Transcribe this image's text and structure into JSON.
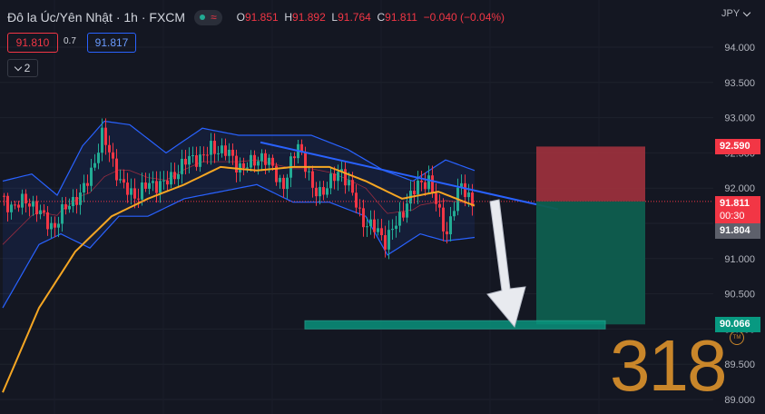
{
  "header": {
    "symbol": "Đô la Úc/Yên Nhật · 1h · FXCM",
    "ohlc": {
      "o_label": "O",
      "o": "91.851",
      "h_label": "H",
      "h": "91.892",
      "l_label": "L",
      "l": "91.764",
      "c_label": "C",
      "c": "91.811",
      "change": "−0.040 (−0.04%)"
    },
    "currency": "JPY"
  },
  "trade_panel": {
    "sell_price": "91.810",
    "spread": "0.7",
    "buy_price": "91.817"
  },
  "indicators": {
    "count": "2"
  },
  "watermark": "318",
  "colors": {
    "background": "#141722",
    "bull": "#22ab94",
    "bear": "#f23645",
    "trendline": "#2962ff",
    "ma": "#f5a623",
    "band": "#2962ff",
    "target": "#089981",
    "stop": "#a8323e"
  },
  "chart_data": {
    "type": "candlestick",
    "currency": "JPY",
    "y_axis": {
      "min": 89.0,
      "max": 94.2,
      "ticks": [
        94.0,
        93.5,
        93.0,
        92.5,
        92.0,
        91.5,
        91.0,
        90.5,
        90.0,
        89.5,
        89.0
      ],
      "tick_labels": [
        "94.000",
        "93.500",
        "93.000",
        "92.500",
        "92.000",
        "91.500",
        "91.000",
        "90.500",
        "90.000",
        "89.500",
        "89.000"
      ]
    },
    "bars": 130,
    "price_path": [
      {
        "bar": 0,
        "price": 91.85
      },
      {
        "bar": 8,
        "price": 91.75
      },
      {
        "bar": 15,
        "price": 91.5
      },
      {
        "bar": 22,
        "price": 91.9
      },
      {
        "bar": 28,
        "price": 92.7
      },
      {
        "bar": 33,
        "price": 92.1
      },
      {
        "bar": 38,
        "price": 91.9
      },
      {
        "bar": 46,
        "price": 92.15
      },
      {
        "bar": 52,
        "price": 92.35
      },
      {
        "bar": 58,
        "price": 92.6
      },
      {
        "bar": 65,
        "price": 92.35
      },
      {
        "bar": 72,
        "price": 92.4
      },
      {
        "bar": 78,
        "price": 92.1
      },
      {
        "bar": 82,
        "price": 92.6
      },
      {
        "bar": 86,
        "price": 91.95
      },
      {
        "bar": 94,
        "price": 92.2
      },
      {
        "bar": 100,
        "price": 91.6
      },
      {
        "bar": 106,
        "price": 91.2
      },
      {
        "bar": 112,
        "price": 91.85
      },
      {
        "bar": 118,
        "price": 92.1
      },
      {
        "bar": 123,
        "price": 91.4
      },
      {
        "bar": 127,
        "price": 92.0
      },
      {
        "bar": 130,
        "price": 91.81
      }
    ],
    "moving_average": [
      {
        "bar": 0,
        "price": 89.1
      },
      {
        "bar": 10,
        "price": 90.3
      },
      {
        "bar": 20,
        "price": 91.1
      },
      {
        "bar": 30,
        "price": 91.6
      },
      {
        "bar": 40,
        "price": 91.85
      },
      {
        "bar": 50,
        "price": 92.05
      },
      {
        "bar": 60,
        "price": 92.3
      },
      {
        "bar": 70,
        "price": 92.25
      },
      {
        "bar": 80,
        "price": 92.3
      },
      {
        "bar": 90,
        "price": 92.3
      },
      {
        "bar": 100,
        "price": 92.1
      },
      {
        "bar": 110,
        "price": 91.85
      },
      {
        "bar": 120,
        "price": 91.95
      },
      {
        "bar": 130,
        "price": 91.75
      }
    ],
    "band_upper": [
      {
        "bar": 0,
        "price": 92.1
      },
      {
        "bar": 8,
        "price": 92.2
      },
      {
        "bar": 15,
        "price": 91.9
      },
      {
        "bar": 22,
        "price": 92.6
      },
      {
        "bar": 28,
        "price": 92.95
      },
      {
        "bar": 35,
        "price": 92.9
      },
      {
        "bar": 45,
        "price": 92.5
      },
      {
        "bar": 55,
        "price": 92.85
      },
      {
        "bar": 65,
        "price": 92.75
      },
      {
        "bar": 75,
        "price": 92.75
      },
      {
        "bar": 85,
        "price": 92.75
      },
      {
        "bar": 95,
        "price": 92.55
      },
      {
        "bar": 105,
        "price": 92.25
      },
      {
        "bar": 113,
        "price": 92.1
      },
      {
        "bar": 122,
        "price": 92.4
      },
      {
        "bar": 130,
        "price": 92.25
      }
    ],
    "band_lower": [
      {
        "bar": 0,
        "price": 90.3
      },
      {
        "bar": 10,
        "price": 91.2
      },
      {
        "bar": 16,
        "price": 91.35
      },
      {
        "bar": 24,
        "price": 91.15
      },
      {
        "bar": 32,
        "price": 91.6
      },
      {
        "bar": 40,
        "price": 91.6
      },
      {
        "bar": 50,
        "price": 91.85
      },
      {
        "bar": 60,
        "price": 91.95
      },
      {
        "bar": 70,
        "price": 92.05
      },
      {
        "bar": 80,
        "price": 91.8
      },
      {
        "bar": 90,
        "price": 91.8
      },
      {
        "bar": 100,
        "price": 91.6
      },
      {
        "bar": 106,
        "price": 91.05
      },
      {
        "bar": 115,
        "price": 91.35
      },
      {
        "bar": 122,
        "price": 91.25
      },
      {
        "bar": 130,
        "price": 91.3
      }
    ],
    "trendline": {
      "start": {
        "bar": 71,
        "price": 92.65
      },
      "end": {
        "bar": 153,
        "price": 91.7
      }
    },
    "current_price": 91.811,
    "countdown": "00:30",
    "bid_price": 91.804,
    "position": {
      "side": "short",
      "entry": 91.811,
      "stop": 92.59,
      "target": 90.066
    },
    "target_zone": {
      "price": 90.066
    },
    "price_labels": {
      "stop": "92.590",
      "current": "91.811",
      "countdown": "00:30",
      "bid": "91.804",
      "target": "90.066"
    },
    "annotations": [
      "downward arrow projecting price toward the target zone"
    ]
  }
}
